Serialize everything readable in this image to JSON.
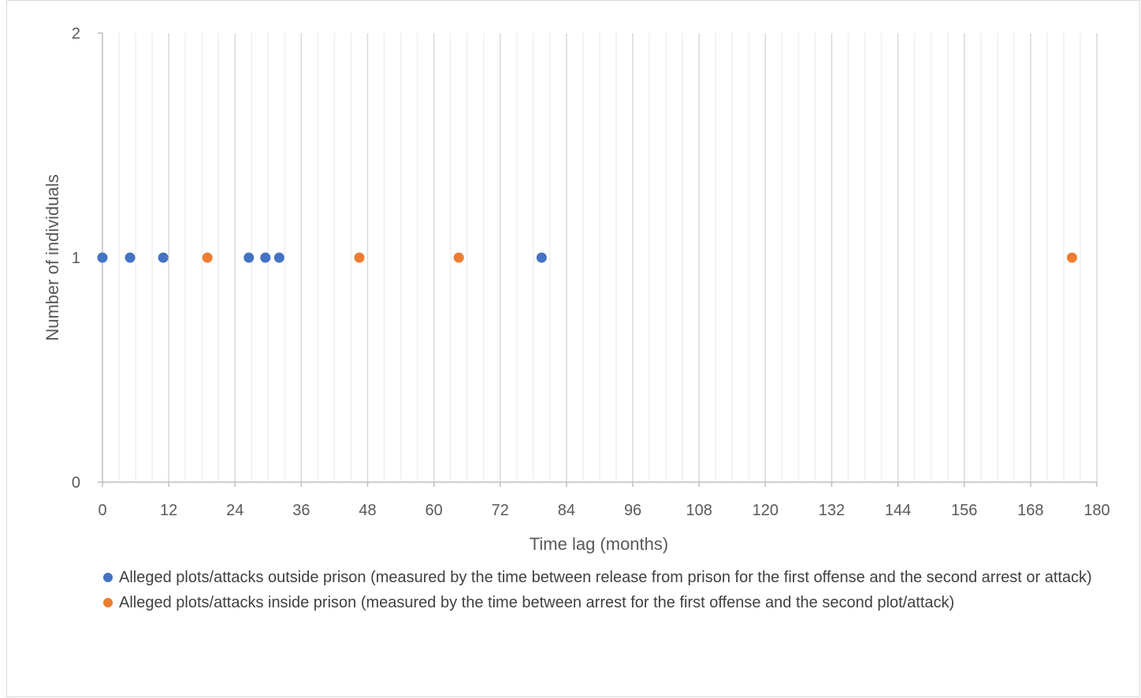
{
  "chart_data": {
    "type": "scatter",
    "title": "",
    "xlabel": "Time lag (months)",
    "ylabel": "Number of individuals",
    "xlim": [
      0,
      180
    ],
    "ylim": [
      0,
      2
    ],
    "xticks": [
      0,
      12,
      24,
      36,
      48,
      60,
      72,
      84,
      96,
      108,
      120,
      132,
      144,
      156,
      168,
      180
    ],
    "yticks": [
      0,
      1,
      2
    ],
    "x_tick_labels": [
      "0",
      "12",
      "24",
      "36",
      "48",
      "60",
      "72",
      "84",
      "96",
      "108",
      "120",
      "132",
      "144",
      "156",
      "168",
      "180"
    ],
    "y_tick_labels": [
      "0",
      "1",
      "2"
    ],
    "vertical_gridlines": true,
    "legend_position": "bottom",
    "series": [
      {
        "name": "Alleged plots/attacks outside prison (measured by the time between release from prison for the first offense and the second arrest or attack)",
        "color": "#4472C4",
        "x": [
          0,
          5,
          11,
          26.5,
          29.5,
          32,
          79.5
        ],
        "y": [
          1,
          1,
          1,
          1,
          1,
          1,
          1
        ]
      },
      {
        "name": "Alleged plots/attacks inside prison (measured by the time between arrest for the first offense and the second plot/attack)",
        "color": "#ED7D31",
        "x": [
          19,
          46.5,
          64.5,
          175.5
        ],
        "y": [
          1,
          1,
          1,
          1
        ]
      }
    ]
  }
}
